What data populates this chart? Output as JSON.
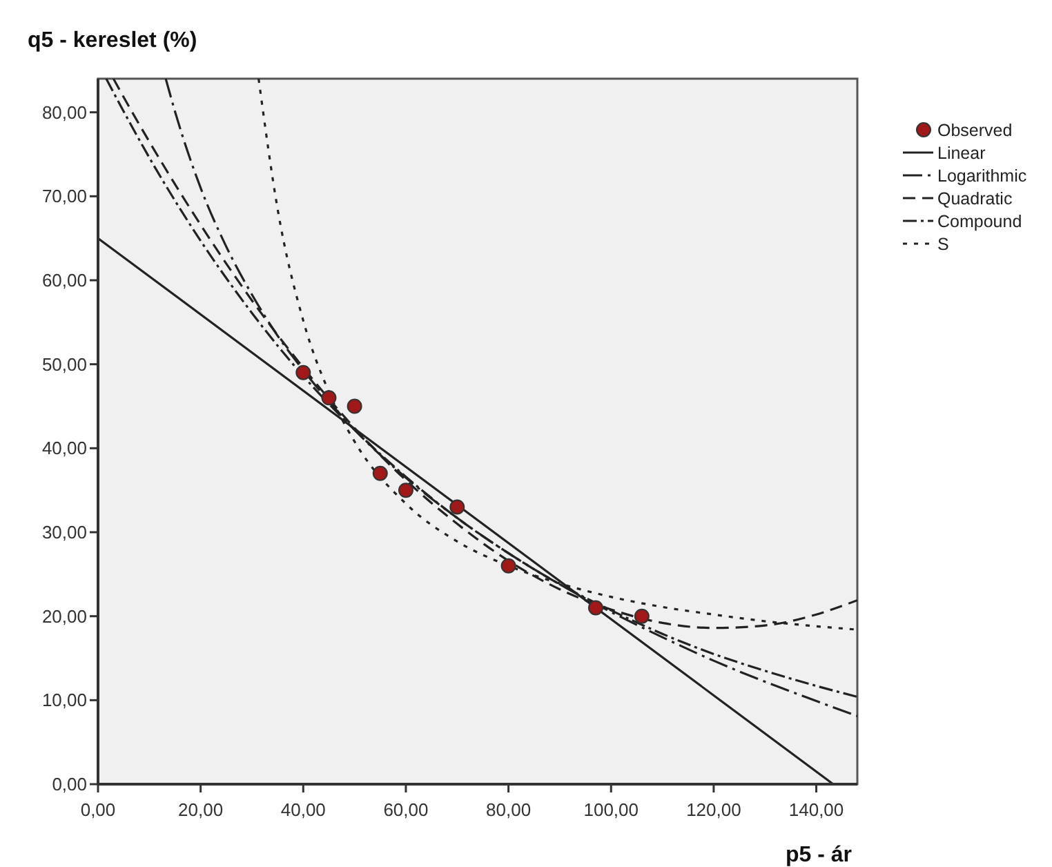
{
  "chart_data": {
    "type": "scatter",
    "ylabel": "q5 - kereslet (%)",
    "xlabel": "p5 - ár",
    "xlim": [
      0,
      148
    ],
    "ylim": [
      0,
      84
    ],
    "xticks": [
      {
        "value": 0,
        "label": "0,00"
      },
      {
        "value": 20,
        "label": "20,00"
      },
      {
        "value": 40,
        "label": "40,00"
      },
      {
        "value": 60,
        "label": "60,00"
      },
      {
        "value": 80,
        "label": "80,00"
      },
      {
        "value": 100,
        "label": "100,00"
      },
      {
        "value": 120,
        "label": "120,00"
      },
      {
        "value": 140,
        "label": "140,00"
      }
    ],
    "yticks": [
      {
        "value": 0,
        "label": "0,00"
      },
      {
        "value": 10,
        "label": "10,00"
      },
      {
        "value": 20,
        "label": "20,00"
      },
      {
        "value": 30,
        "label": "30,00"
      },
      {
        "value": 40,
        "label": "40,00"
      },
      {
        "value": 50,
        "label": "50,00"
      },
      {
        "value": 60,
        "label": "60,00"
      },
      {
        "value": 70,
        "label": "70,00"
      },
      {
        "value": 80,
        "label": "80,00"
      }
    ],
    "grid": false,
    "legend": "top right",
    "series": [
      {
        "name": "Observed",
        "marker": "circle",
        "color": "#a01818",
        "x": [
          40,
          45,
          50,
          55,
          60,
          70,
          80,
          97,
          106
        ],
        "values": [
          49,
          46,
          45,
          37,
          35,
          33,
          26,
          21,
          20
        ]
      },
      {
        "name": "Linear",
        "type": "line",
        "line_style": "solid",
        "color": "#222222",
        "x": [
          0,
          143.3
        ],
        "values": [
          65,
          0
        ]
      },
      {
        "name": "Logarithmic",
        "type": "line",
        "line_style": "dashed",
        "color": "#222222",
        "x": [
          13.2,
          15,
          20,
          25,
          30,
          35,
          40,
          50,
          60,
          70,
          80,
          90,
          100,
          110,
          120,
          130,
          140,
          148
        ],
        "values": [
          84,
          80.1,
          71,
          64,
          58.3,
          53.4,
          49.3,
          42.2,
          36.5,
          31.7,
          27.5,
          23.8,
          20.5,
          17.5,
          14.7,
          12.2,
          9.9,
          8.1
        ]
      },
      {
        "name": "Quadratic",
        "type": "line",
        "line_style": "dashed",
        "color": "#222222",
        "x": [
          3,
          5,
          10,
          20,
          30,
          40,
          50,
          60,
          70,
          80,
          90,
          100,
          110,
          120,
          130,
          140,
          148
        ],
        "values": [
          84,
          81.8,
          76.5,
          66.6,
          57.6,
          49.6,
          42.4,
          36.2,
          31,
          26.6,
          23.2,
          20.8,
          19.2,
          18.6,
          18.9,
          20.2,
          21.9
        ]
      },
      {
        "name": "Compound",
        "type": "line",
        "line_style": "dashed",
        "color": "#222222",
        "x": [
          1.6,
          5,
          10,
          20,
          30,
          40,
          50,
          60,
          70,
          80,
          90,
          100,
          110,
          120,
          130,
          140,
          148
        ],
        "values": [
          84,
          80.1,
          74.6,
          64.7,
          56.1,
          48.6,
          42.2,
          36.6,
          31.7,
          27.5,
          23.8,
          20.7,
          17.9,
          15.5,
          13.5,
          11.7,
          10.4
        ]
      },
      {
        "name": "S",
        "type": "line",
        "line_style": "dotted",
        "color": "#222222",
        "x": [
          31.3,
          35,
          40,
          45,
          50,
          60,
          70,
          80,
          90,
          100,
          110,
          120,
          130,
          140,
          148
        ],
        "values": [
          84,
          68.5,
          55.2,
          46.7,
          40.8,
          33.4,
          28.9,
          26,
          23.9,
          22.3,
          21.1,
          20.2,
          19.4,
          18.8,
          18.4
        ]
      }
    ]
  }
}
